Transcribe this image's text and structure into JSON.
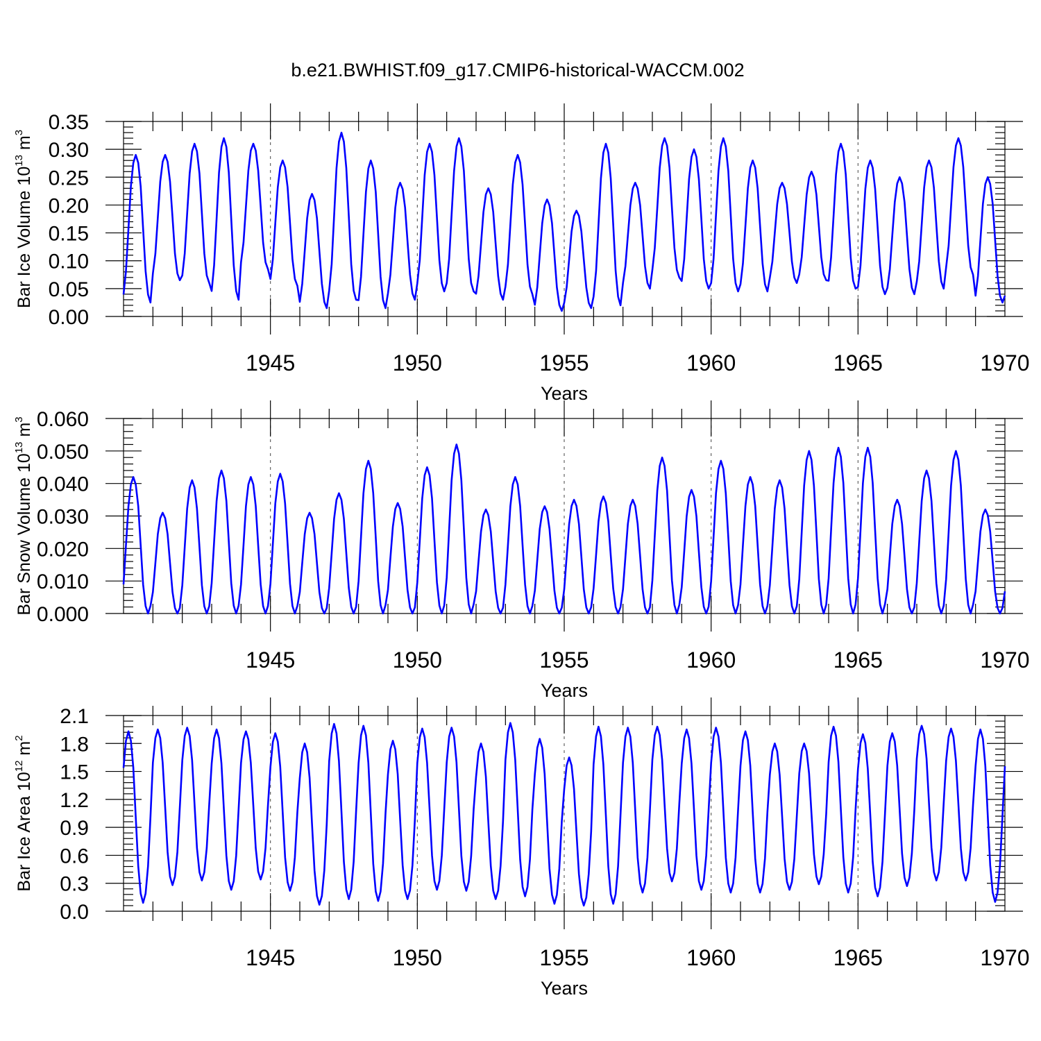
{
  "title": "b.e21.BWHIST.f09_g17.CMIP6-historical-WACCM.002",
  "colors": {
    "series": "#0000ff",
    "grid": "#555555",
    "axes": "#000000"
  },
  "chart_data": [
    {
      "type": "line",
      "ylabel": {
        "text": "Bar Ice Volume 10",
        "exponent": "13",
        "unit": " m",
        "unit_exponent": "3"
      },
      "xlabel": "Years",
      "xlim": [
        1940,
        1970
      ],
      "ylim": [
        0.0,
        0.35
      ],
      "yticks": [
        "0.00",
        "0.05",
        "0.10",
        "0.15",
        "0.20",
        "0.25",
        "0.30",
        "0.35"
      ],
      "xticks": [
        "1945",
        "1950",
        "1955",
        "1960",
        "1965",
        "1970"
      ],
      "grid": "vertical dashed at major x ticks",
      "series_shape": {
        "type": "seasonal_cycle",
        "start_year": 1940,
        "months": 360,
        "peak_month": 5
      },
      "annual_max": [
        0.29,
        0.29,
        0.31,
        0.32,
        0.31,
        0.28,
        0.22,
        0.33,
        0.28,
        0.24,
        0.31,
        0.32,
        0.23,
        0.29,
        0.21,
        0.19,
        0.31,
        0.24,
        0.32,
        0.3,
        0.32,
        0.28,
        0.24,
        0.26,
        0.31,
        0.28,
        0.25,
        0.28,
        0.32,
        0.25
      ],
      "annual_min": [
        0.025,
        0.065,
        0.06,
        0.03,
        0.085,
        0.055,
        0.015,
        0.03,
        0.015,
        0.03,
        0.045,
        0.045,
        0.03,
        0.04,
        0.01,
        0.015,
        0.02,
        0.05,
        0.07,
        0.05,
        0.045,
        0.045,
        0.06,
        0.065,
        0.05,
        0.04,
        0.04,
        0.05,
        0.075,
        0.025
      ]
    },
    {
      "type": "line",
      "ylabel": {
        "text": "Bar Snow Volume 10",
        "exponent": "13",
        "unit": " m",
        "unit_exponent": "3"
      },
      "xlabel": "Years",
      "xlim": [
        1940,
        1970
      ],
      "ylim": [
        0.0,
        0.06
      ],
      "yticks": [
        "0.000",
        "0.010",
        "0.020",
        "0.030",
        "0.040",
        "0.050",
        "0.060"
      ],
      "xticks": [
        "1945",
        "1950",
        "1955",
        "1960",
        "1965",
        "1970"
      ],
      "grid": "vertical dashed at major x ticks",
      "series_shape": {
        "type": "seasonal_cycle",
        "start_year": 1940,
        "months": 360,
        "peak_month": 4
      },
      "annual_max": [
        0.042,
        0.031,
        0.041,
        0.044,
        0.042,
        0.043,
        0.031,
        0.037,
        0.047,
        0.034,
        0.045,
        0.052,
        0.032,
        0.042,
        0.033,
        0.035,
        0.036,
        0.035,
        0.048,
        0.038,
        0.047,
        0.042,
        0.041,
        0.05,
        0.051,
        0.051,
        0.035,
        0.044,
        0.05,
        0.032
      ],
      "annual_min": [
        0.0,
        0.0,
        0.0,
        0.0,
        0.0,
        0.0,
        0.0,
        0.0,
        0.0,
        0.0,
        0.0,
        0.0,
        0.0,
        0.0,
        0.0,
        0.0,
        0.0,
        0.0,
        0.0,
        0.0,
        0.0,
        0.0,
        0.0,
        0.0,
        0.0,
        0.0,
        0.0,
        0.0,
        0.0,
        0.0
      ]
    },
    {
      "type": "line",
      "ylabel": {
        "text": "Bar Ice Area 10",
        "exponent": "12",
        "unit": " m",
        "unit_exponent": "2"
      },
      "xlabel": "Years",
      "xlim": [
        1940,
        1970
      ],
      "ylim": [
        0.0,
        2.1
      ],
      "yticks": [
        "0.0",
        "0.3",
        "0.6",
        "0.9",
        "1.2",
        "1.5",
        "1.8",
        "2.1"
      ],
      "xticks": [
        "1945",
        "1950",
        "1955",
        "1960",
        "1965",
        "1970"
      ],
      "grid": "vertical dashed at major x ticks",
      "series_shape": {
        "type": "seasonal_cycle",
        "start_year": 1940,
        "months": 360,
        "peak_month": 2
      },
      "annual_max": [
        1.93,
        1.95,
        1.97,
        1.95,
        1.93,
        1.91,
        1.8,
        2.01,
        1.99,
        1.83,
        1.96,
        1.97,
        1.8,
        2.02,
        1.85,
        1.65,
        1.98,
        1.97,
        1.98,
        1.95,
        1.97,
        1.93,
        1.8,
        1.8,
        1.98,
        1.9,
        1.91,
        1.99,
        1.96,
        1.95
      ],
      "annual_min": [
        0.09,
        0.28,
        0.33,
        0.23,
        0.34,
        0.22,
        0.07,
        0.13,
        0.11,
        0.13,
        0.23,
        0.22,
        0.13,
        0.16,
        0.08,
        0.06,
        0.08,
        0.2,
        0.32,
        0.23,
        0.2,
        0.2,
        0.23,
        0.29,
        0.2,
        0.16,
        0.27,
        0.33,
        0.33,
        0.1
      ]
    }
  ]
}
